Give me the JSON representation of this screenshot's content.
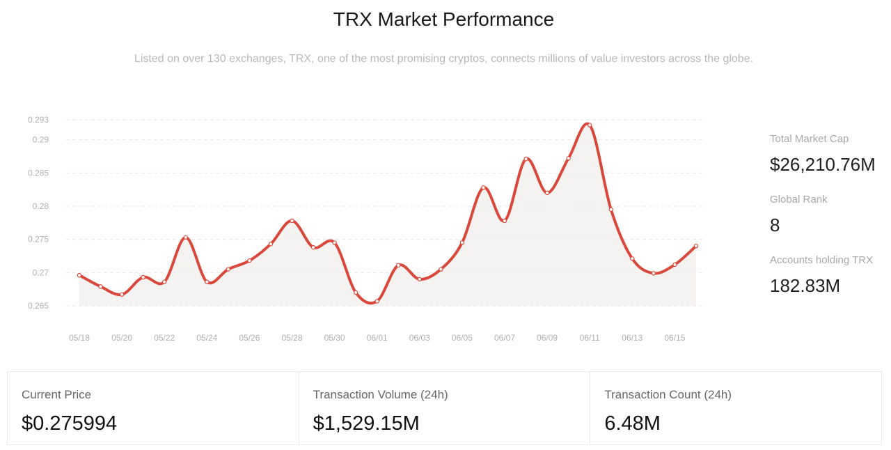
{
  "title": "TRX Market Performance",
  "subtitle": "Listed on over 130 exchanges, TRX, one of the most promising cryptos, connects millions of value investors across the globe.",
  "side_stats": [
    {
      "label": "Total Market Cap",
      "value": "$26,210.76M"
    },
    {
      "label": "Global Rank",
      "value": "8"
    },
    {
      "label": "Accounts holding TRX",
      "value": "182.83M"
    }
  ],
  "cards": [
    {
      "label": "Current Price",
      "value": "$0.275994"
    },
    {
      "label": "Transaction Volume (24h)",
      "value": "$1,529.15M"
    },
    {
      "label": "Transaction Count (24h)",
      "value": "6.48M"
    }
  ],
  "colors": {
    "line": "#d9483a",
    "area": "#f1eeee",
    "grid": "#e6e6e6",
    "tick": "#b0b0b0"
  },
  "chart_data": {
    "type": "area",
    "title": "",
    "xlabel": "",
    "ylabel": "",
    "x": [
      "05/18",
      "05/19",
      "05/20",
      "05/21",
      "05/22",
      "05/23",
      "05/24",
      "05/25",
      "05/26",
      "05/27",
      "05/28",
      "05/29",
      "05/30",
      "05/31",
      "06/01",
      "06/02",
      "06/03",
      "06/04",
      "06/05",
      "06/06",
      "06/07",
      "06/08",
      "06/09",
      "06/10",
      "06/11",
      "06/12",
      "06/13",
      "06/14",
      "06/15",
      "06/16"
    ],
    "x_tick_labels": [
      "05/18",
      "05/20",
      "05/22",
      "05/24",
      "05/26",
      "05/28",
      "05/30",
      "06/01",
      "06/03",
      "06/05",
      "06/07",
      "06/09",
      "06/11",
      "06/13",
      "06/15"
    ],
    "series": [
      {
        "values": [
          0.2696,
          0.2679,
          0.2667,
          0.2693,
          0.2686,
          0.2753,
          0.2686,
          0.2705,
          0.2718,
          0.2743,
          0.2778,
          0.2738,
          0.2745,
          0.267,
          0.2657,
          0.2711,
          0.269,
          0.2705,
          0.2745,
          0.2828,
          0.2778,
          0.2871,
          0.282,
          0.2872,
          0.2922,
          0.2795,
          0.2721,
          0.2699,
          0.2712,
          0.274
        ]
      }
    ],
    "y_tick_labels": [
      "0.293",
      "0.29",
      "0.285",
      "0.28",
      "0.275",
      "0.27",
      "0.265"
    ],
    "ylim": [
      0.265,
      0.293
    ],
    "grid": true,
    "legend": "none"
  }
}
